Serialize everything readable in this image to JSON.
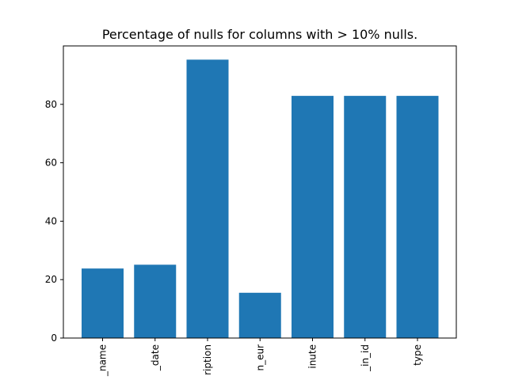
{
  "chart_data": {
    "type": "bar",
    "title": "Percentage of nulls for columns with > 10% nulls.",
    "xlabel": "",
    "ylabel": "",
    "categories": [
      "_name",
      "_date",
      "ription",
      "n_eur",
      "inute",
      "_in_id",
      "type"
    ],
    "values": [
      23.8,
      25.1,
      95.3,
      15.5,
      82.9,
      82.9,
      82.9
    ],
    "yticks": [
      0,
      20,
      40,
      60,
      80
    ],
    "ylim": [
      0,
      100
    ],
    "bar_color": "#1f77b4",
    "grid": false,
    "legend": "none"
  }
}
